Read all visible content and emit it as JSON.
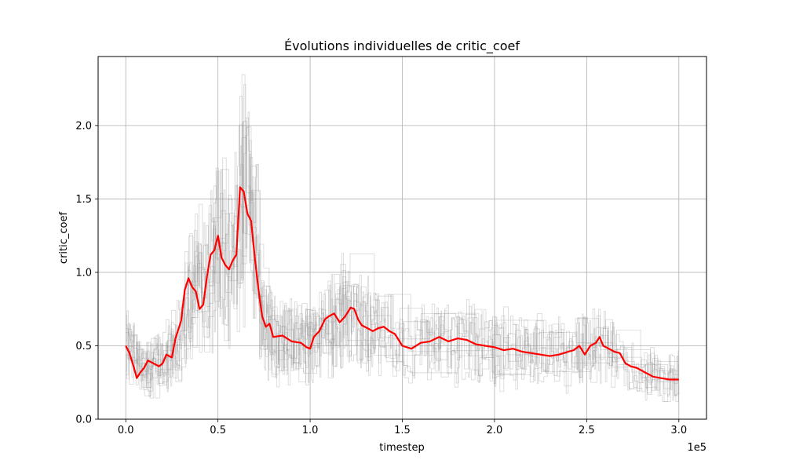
{
  "chart_data": {
    "type": "line",
    "title": "Évolutions individuelles de critic_coef",
    "xlabel": "timestep",
    "ylabel": "critic_coef",
    "x_offset_label": "1e5",
    "xlim": [
      -15000,
      315000
    ],
    "ylim": [
      0,
      2.47
    ],
    "x_ticks": [
      0,
      50000,
      100000,
      150000,
      200000,
      250000,
      300000
    ],
    "x_tick_labels": [
      "0.0",
      "0.5",
      "1.0",
      "1.5",
      "2.0",
      "2.5",
      "3.0"
    ],
    "y_ticks": [
      0,
      0.5,
      1.0,
      1.5,
      2.0
    ],
    "y_tick_labels": [
      "0.0",
      "0.5",
      "1.0",
      "1.5",
      "2.0"
    ],
    "grid": true,
    "legend": "none",
    "colors": {
      "individual": "#8c8c8c",
      "mean": "#ff0000"
    },
    "mean_series": {
      "x": [
        0,
        2000,
        4000,
        6000,
        8000,
        10000,
        12000,
        15000,
        18000,
        20000,
        22000,
        25000,
        27000,
        30000,
        32000,
        34000,
        36000,
        38000,
        40000,
        42000,
        44000,
        46000,
        48000,
        50000,
        52000,
        54000,
        56000,
        58000,
        60000,
        62000,
        64000,
        66000,
        68000,
        70000,
        72000,
        74000,
        76000,
        78000,
        80000,
        85000,
        90000,
        95000,
        98000,
        100000,
        102000,
        105000,
        108000,
        110000,
        113000,
        116000,
        119000,
        122000,
        124000,
        126000,
        128000,
        131000,
        134000,
        137000,
        140000,
        143000,
        146000,
        150000,
        155000,
        160000,
        165000,
        170000,
        175000,
        180000,
        185000,
        190000,
        195000,
        200000,
        205000,
        210000,
        215000,
        220000,
        225000,
        230000,
        235000,
        240000,
        243000,
        246000,
        249000,
        252000,
        255000,
        257000,
        259000,
        262000,
        265000,
        268000,
        271000,
        274000,
        277000,
        280000,
        283000,
        286000,
        290000,
        295000,
        300000
      ],
      "y": [
        0.5,
        0.45,
        0.37,
        0.28,
        0.32,
        0.35,
        0.4,
        0.38,
        0.36,
        0.38,
        0.44,
        0.42,
        0.55,
        0.67,
        0.88,
        0.96,
        0.9,
        0.87,
        0.75,
        0.78,
        0.97,
        1.12,
        1.15,
        1.25,
        1.1,
        1.05,
        1.02,
        1.08,
        1.12,
        1.58,
        1.55,
        1.4,
        1.35,
        1.1,
        0.88,
        0.7,
        0.63,
        0.65,
        0.56,
        0.57,
        0.53,
        0.52,
        0.49,
        0.48,
        0.56,
        0.6,
        0.68,
        0.7,
        0.72,
        0.66,
        0.7,
        0.76,
        0.75,
        0.68,
        0.64,
        0.62,
        0.6,
        0.62,
        0.63,
        0.6,
        0.58,
        0.5,
        0.48,
        0.52,
        0.53,
        0.56,
        0.53,
        0.55,
        0.54,
        0.51,
        0.5,
        0.49,
        0.47,
        0.48,
        0.46,
        0.45,
        0.44,
        0.43,
        0.44,
        0.46,
        0.47,
        0.5,
        0.44,
        0.5,
        0.52,
        0.56,
        0.5,
        0.48,
        0.46,
        0.45,
        0.38,
        0.36,
        0.35,
        0.33,
        0.31,
        0.29,
        0.28,
        0.27,
        0.27
      ]
    },
    "individual_series_count": 10,
    "individual_profile": {
      "x": [
        0,
        10000,
        20000,
        30000,
        35000,
        45000,
        50000,
        55000,
        60000,
        63000,
        70000,
        75000,
        80000,
        90000,
        100000,
        110000,
        120000,
        130000,
        140000,
        150000,
        160000,
        180000,
        200000,
        220000,
        240000,
        260000,
        270000,
        280000,
        300000
      ],
      "y": [
        0.5,
        0.33,
        0.38,
        0.62,
        0.9,
        0.95,
        1.2,
        1.05,
        1.2,
        1.55,
        1.25,
        0.65,
        0.56,
        0.53,
        0.5,
        0.62,
        0.75,
        0.63,
        0.6,
        0.52,
        0.52,
        0.54,
        0.49,
        0.46,
        0.44,
        0.52,
        0.38,
        0.31,
        0.27
      ]
    }
  }
}
